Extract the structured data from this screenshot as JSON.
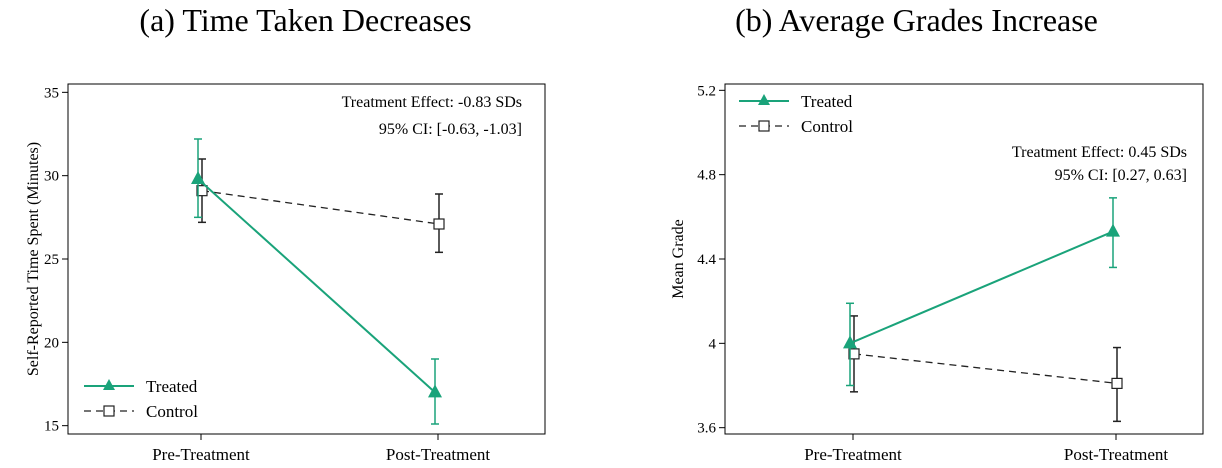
{
  "colors": {
    "treated": "#1aa37a",
    "control": "#222222"
  },
  "chart_data": [
    {
      "type": "line",
      "title": "(a) Time Taken Decreases",
      "xlabel": "",
      "ylabel": "Self-Reported Time Spent (Minutes)",
      "categories": [
        "Pre-Treatment",
        "Post-Treatment"
      ],
      "ylim": [
        14.5,
        35.5
      ],
      "yticks": [
        15,
        20,
        25,
        30,
        35
      ],
      "legend_position": "bottom-left",
      "annotation": {
        "line1": "Treatment Effect:    -0.83 SDs",
        "line2": "95% CI:  [-0.63, -1.03]"
      },
      "series": [
        {
          "name": "Treated",
          "marker": "triangle",
          "linestyle": "solid",
          "values": [
            29.8,
            17.0
          ],
          "ci_low": [
            27.5,
            15.1
          ],
          "ci_high": [
            32.2,
            19.0
          ]
        },
        {
          "name": "Control",
          "marker": "square",
          "linestyle": "dashed",
          "values": [
            29.1,
            27.1
          ],
          "ci_low": [
            27.2,
            25.4
          ],
          "ci_high": [
            31.0,
            28.9
          ]
        }
      ]
    },
    {
      "type": "line",
      "title": "(b) Average Grades Increase",
      "xlabel": "",
      "ylabel": "Mean Grade",
      "categories": [
        "Pre-Treatment",
        "Post-Treatment"
      ],
      "ylim": [
        3.57,
        5.23
      ],
      "yticks": [
        3.6,
        4,
        4.4,
        4.8,
        5.2
      ],
      "ytick_labels": [
        "3.6",
        "4",
        "4.4",
        "4.8",
        "5.2"
      ],
      "legend_position": "top-left",
      "annotation": {
        "line1": "Treatment Effect:     0.45 SDs",
        "line2": "95% CI:  [0.27, 0.63]"
      },
      "series": [
        {
          "name": "Treated",
          "marker": "triangle",
          "linestyle": "solid",
          "values": [
            4.0,
            4.53
          ],
          "ci_low": [
            3.8,
            4.36
          ],
          "ci_high": [
            4.19,
            4.69
          ]
        },
        {
          "name": "Control",
          "marker": "square",
          "linestyle": "dashed",
          "values": [
            3.95,
            3.81
          ],
          "ci_low": [
            3.77,
            3.63
          ],
          "ci_high": [
            4.13,
            3.98
          ]
        }
      ]
    }
  ]
}
